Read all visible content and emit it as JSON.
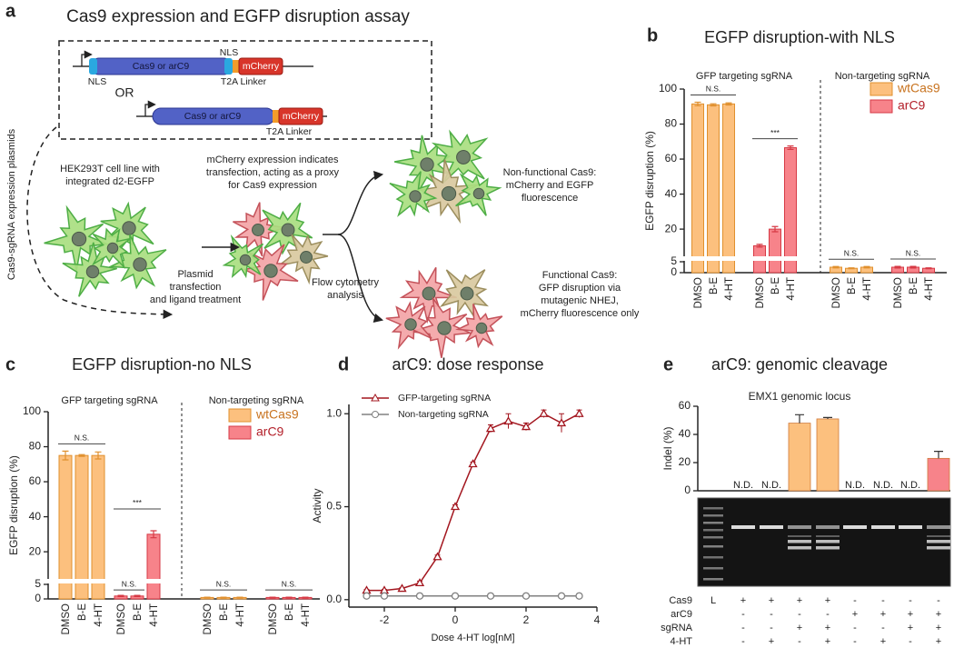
{
  "diagram": {
    "label": "a",
    "title": "Cas9 expression and EGFP disruption assay",
    "side_label": "Cas9-sgRNA expression plasmids",
    "construct1": {
      "gene": "Cas9 or arC9",
      "nls_left": "NLS",
      "nls_right": "NLS",
      "linker": "T2A Linker",
      "reporter": "mCherry"
    },
    "or": "OR",
    "construct2": {
      "gene": "Cas9 or arC9",
      "linker": "T2A Linker",
      "reporter": "mCherry"
    },
    "cell_line": [
      "HEK293T cell line with",
      "integrated d2-EGFP"
    ],
    "mcherry_note": [
      "mCherry expression indicates",
      "transfection, acting as a proxy",
      "for Cas9 expression"
    ],
    "transfection": [
      "Plasmid",
      "transfection",
      "and ligand treatment"
    ],
    "flow": [
      "Flow cytometry",
      "analysis"
    ],
    "nonfunctional": [
      "Non-functional Cas9:",
      "mCherry and EGFP",
      "fluorescence"
    ],
    "functional": [
      "Functional Cas9:",
      "GFP disruption via",
      "mutagenic NHEJ,",
      "mCherry fluorescence only"
    ]
  },
  "chart_data": [
    {
      "type": "bar",
      "label": "b",
      "title": "EGFP disruption-with NLS",
      "ylabel": "EGFP disruption (%)",
      "groups": [
        "GFP targeting sgRNA",
        "Non-targeting sgRNA"
      ],
      "categories": [
        "DMSO",
        "B-E",
        "4-HT",
        "DMSO",
        "B-E",
        "4-HT",
        "DMSO",
        "B-E",
        "4-HT",
        "DMSO",
        "B-E",
        "4-HT"
      ],
      "segments": [
        {
          "ylim": [
            0,
            5
          ],
          "yticks": [
            0,
            5
          ]
        },
        {
          "ylim": [
            5,
            100
          ],
          "yticks": [
            20,
            40,
            60,
            80,
            100
          ]
        }
      ],
      "series": [
        {
          "name": "wtCas9",
          "color": "#fcc07e",
          "edge_color": "#e0902e",
          "label_color": "#c8731f",
          "values": [
            91.5,
            91,
            91.5,
            null,
            null,
            null,
            2.5,
            2,
            2.5,
            null,
            null,
            null
          ],
          "errors": [
            1,
            0.6,
            0.6,
            null,
            null,
            null,
            0.3,
            0.2,
            0.3,
            null,
            null,
            null
          ]
        },
        {
          "name": "arC9",
          "color": "#f7838a",
          "edge_color": "#d63a45",
          "label_color": "#b3202a",
          "values": [
            null,
            null,
            null,
            10.5,
            20,
            66.5,
            null,
            null,
            null,
            2.5,
            2.5,
            2
          ],
          "errors": [
            null,
            null,
            null,
            0.8,
            1.5,
            1,
            null,
            null,
            null,
            0.4,
            0.4,
            0.2
          ]
        }
      ],
      "significance": [
        [
          "N.S."
        ],
        [
          "***"
        ],
        [
          "N.S."
        ],
        [
          "N.S."
        ]
      ],
      "legend": "upper right"
    },
    {
      "type": "bar",
      "label": "c",
      "title": "EGFP disruption-no NLS",
      "ylabel": "EGFP disruption (%)",
      "groups": [
        "GFP targeting sgRNA",
        "Non-targeting sgRNA"
      ],
      "categories": [
        "DMSO",
        "B-E",
        "4-HT",
        "DMSO",
        "B-E",
        "4-HT",
        "DMSO",
        "B-E",
        "4-HT",
        "DMSO",
        "B-E",
        "4-HT"
      ],
      "segments": [
        {
          "ylim": [
            0,
            5
          ],
          "yticks": [
            0,
            5
          ]
        },
        {
          "ylim": [
            5,
            100
          ],
          "yticks": [
            20,
            40,
            60,
            80,
            100
          ]
        }
      ],
      "series": [
        {
          "name": "wtCas9",
          "color": "#fcc07e",
          "edge_color": "#e0902e",
          "label_color": "#c8731f",
          "values": [
            75,
            75,
            75,
            null,
            null,
            null,
            0.5,
            0.5,
            0.5,
            null,
            null,
            null
          ],
          "errors": [
            2.5,
            0.5,
            2,
            null,
            null,
            null,
            0.1,
            0.1,
            0.1,
            null,
            null,
            null
          ]
        },
        {
          "name": "arC9",
          "color": "#f7838a",
          "edge_color": "#d63a45",
          "label_color": "#b3202a",
          "values": [
            null,
            null,
            null,
            1,
            1,
            30,
            null,
            null,
            null,
            0.5,
            0.5,
            0.5
          ],
          "errors": [
            null,
            null,
            null,
            0.2,
            0.2,
            2,
            null,
            null,
            null,
            0.1,
            0.1,
            0.1
          ]
        }
      ],
      "significance": [
        [
          "N.S."
        ],
        [
          "N.S.",
          "***"
        ],
        [
          "N.S."
        ],
        [
          "N.S."
        ]
      ],
      "legend": "upper right"
    },
    {
      "type": "line",
      "label": "d",
      "title": "arC9: dose response",
      "xlabel": "Dose 4-HT log[nM]",
      "ylabel": "Activity",
      "xlim": [
        -3,
        4
      ],
      "xticks": [
        -2,
        0,
        2,
        4
      ],
      "ylim": [
        -0.04,
        1.05
      ],
      "yticks": [
        {
          "value": 0,
          "label": "0.0"
        },
        {
          "value": 0.5,
          "label": "0.5"
        },
        {
          "value": 1,
          "label": "1.0"
        }
      ],
      "series": [
        {
          "name": "GFP-targeting sgRNA",
          "color": "#a3161f",
          "marker": "triangle",
          "x": [
            -2.5,
            -2,
            -1.5,
            -1,
            -0.5,
            0,
            0.5,
            1,
            1.5,
            2,
            2.5,
            3,
            3.5
          ],
          "values": [
            0.05,
            0.05,
            0.06,
            0.09,
            0.23,
            0.5,
            0.73,
            0.92,
            0.96,
            0.93,
            1.0,
            0.95,
            1.0
          ],
          "errors": [
            0.005,
            0.005,
            0.005,
            0.01,
            0.01,
            0.01,
            0.01,
            0.02,
            0.04,
            0.02,
            0.02,
            0.05,
            0.02
          ]
        },
        {
          "name": "Non-targeting sgRNA",
          "color": "#808080",
          "marker": "circle",
          "x": [
            -2.5,
            -2,
            -1,
            0,
            1,
            2,
            3,
            3.5
          ],
          "values": [
            0.02,
            0.02,
            0.02,
            0.02,
            0.02,
            0.02,
            0.02,
            0.02
          ]
        }
      ],
      "legend": "upper left"
    },
    {
      "type": "bar",
      "label": "e",
      "title": "arC9: genomic cleavage",
      "subtitle": "EMX1 genomic locus",
      "ylabel": "Indel (%)",
      "ylim": [
        0,
        60
      ],
      "yticks": [
        0,
        20,
        40,
        60
      ],
      "values": [
        null,
        null,
        48,
        51,
        null,
        null,
        null,
        23
      ],
      "errors": [
        null,
        null,
        6,
        1,
        null,
        null,
        null,
        5
      ],
      "value_labels": [
        "N.D.",
        "N.D.",
        null,
        null,
        "N.D.",
        "N.D.",
        "N.D.",
        null
      ],
      "colors": [
        null,
        null,
        "#fcc07e",
        "#fcc07e",
        null,
        null,
        null,
        "#f7838a"
      ],
      "gel_table": {
        "ladder": "L",
        "rows": [
          {
            "label": "Cas9",
            "cells": [
              "+",
              "+",
              "+",
              "+",
              "-",
              "-",
              "-",
              "-"
            ]
          },
          {
            "label": "arC9",
            "cells": [
              "-",
              "-",
              "-",
              "-",
              "+",
              "+",
              "+",
              "+"
            ]
          },
          {
            "label": "sgRNA",
            "cells": [
              "-",
              "-",
              "+",
              "+",
              "-",
              "-",
              "+",
              "+"
            ]
          },
          {
            "label": "4-HT",
            "cells": [
              "-",
              "+",
              "-",
              "+",
              "-",
              "+",
              "-",
              "+"
            ]
          }
        ]
      }
    }
  ]
}
